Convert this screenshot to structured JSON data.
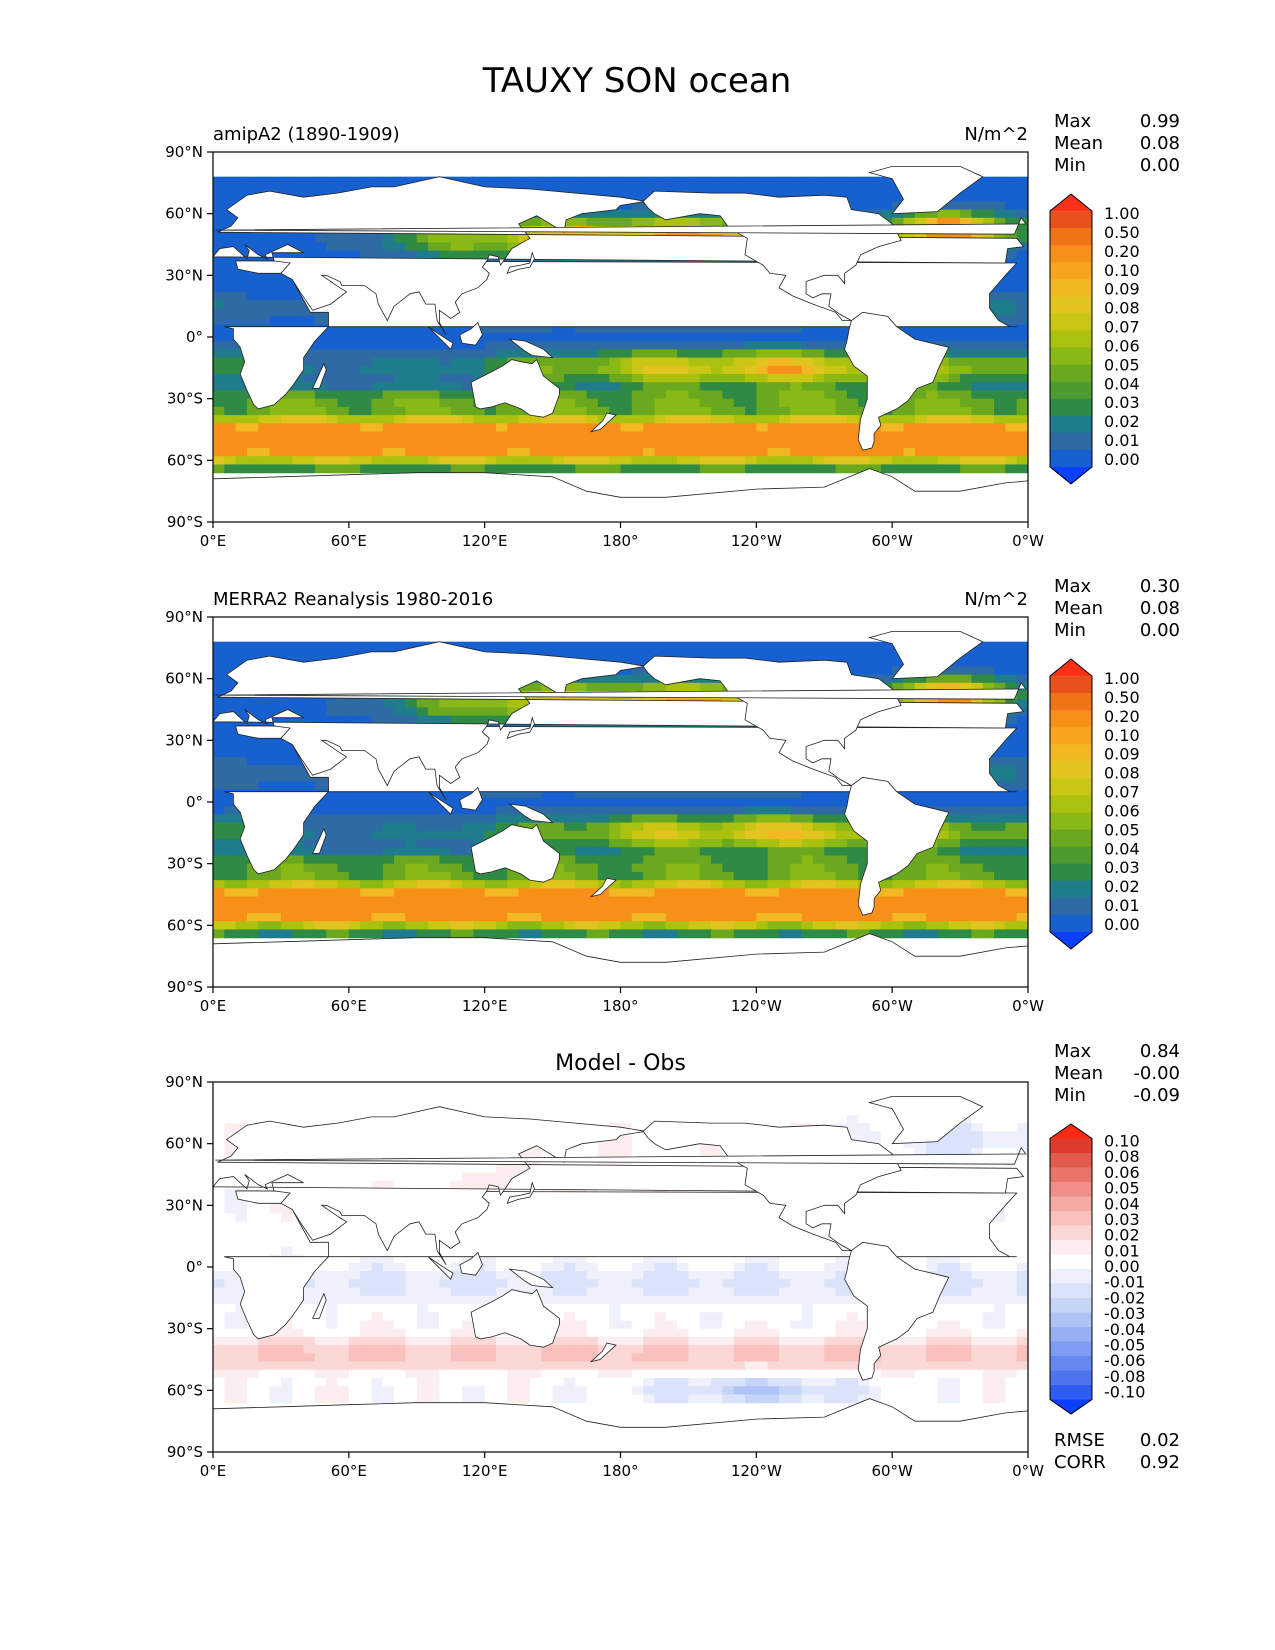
{
  "title": "TAUXY SON ocean",
  "colors": {
    "seq": [
      "#0b3ffe",
      "#1760d0",
      "#2e6aa3",
      "#1f7c8c",
      "#2e8a45",
      "#4d9a30",
      "#6aa91f",
      "#8ab814",
      "#aac20e",
      "#c9c614",
      "#e2c421",
      "#f2b824",
      "#f7a41e",
      "#f79019",
      "#f07417",
      "#e8511b",
      "#fe3018"
    ],
    "div": [
      "#0b3ffe",
      "#2f5cf0",
      "#4d74ec",
      "#6689ef",
      "#7e9df2",
      "#97b0f4",
      "#b0c3f6",
      "#c6d4f8",
      "#dbe3fa",
      "#eef1fc",
      "#ffffff",
      "#fceeee",
      "#fbd7d5",
      "#f8c1bd",
      "#f4a9a3",
      "#ef8f87",
      "#e9746a",
      "#e25a4c",
      "#de3b2c",
      "#fe2b12"
    ]
  },
  "chart_data": [
    {
      "type": "heatmap",
      "left_title": "amipA2 (1890-1909)",
      "units": "N/m^2",
      "stats": [
        {
          "label": "Max",
          "value": "0.99"
        },
        {
          "label": "Mean",
          "value": "0.08"
        },
        {
          "label": "Min",
          "value": "0.00"
        }
      ],
      "xticks": [
        "0°E",
        "60°E",
        "120°E",
        "180°",
        "120°W",
        "60°W",
        "0°W"
      ],
      "yticks": [
        "90°N",
        "60°N",
        "30°N",
        "0°",
        "30°S",
        "60°S",
        "90°S"
      ],
      "colorbar": {
        "scale": "seq",
        "labels": [
          "1.00",
          "0.50",
          "0.20",
          "0.10",
          "0.09",
          "0.08",
          "0.07",
          "0.06",
          "0.05",
          "0.04",
          "0.03",
          "0.02",
          "0.01",
          "0.00"
        ]
      }
    },
    {
      "type": "heatmap",
      "left_title": "MERRA2 Reanalysis 1980-2016",
      "units": "N/m^2",
      "stats": [
        {
          "label": "Max",
          "value": "0.30"
        },
        {
          "label": "Mean",
          "value": "0.08"
        },
        {
          "label": "Min",
          "value": "0.00"
        }
      ],
      "xticks": [
        "0°E",
        "60°E",
        "120°E",
        "180°",
        "120°W",
        "60°W",
        "0°W"
      ],
      "yticks": [
        "90°N",
        "60°N",
        "30°N",
        "0°",
        "30°S",
        "60°S",
        "90°S"
      ],
      "colorbar": {
        "scale": "seq",
        "labels": [
          "1.00",
          "0.50",
          "0.20",
          "0.10",
          "0.09",
          "0.08",
          "0.07",
          "0.06",
          "0.05",
          "0.04",
          "0.03",
          "0.02",
          "0.01",
          "0.00"
        ]
      }
    },
    {
      "type": "heatmap",
      "center_title": "Model - Obs",
      "stats": [
        {
          "label": "Max",
          "value": "0.84"
        },
        {
          "label": "Mean",
          "value": "-0.00"
        },
        {
          "label": "Min",
          "value": "-0.09"
        }
      ],
      "bottom_stats": [
        {
          "label": "RMSE",
          "value": "0.02"
        },
        {
          "label": "CORR",
          "value": "0.92"
        }
      ],
      "xticks": [
        "0°E",
        "60°E",
        "120°E",
        "180°",
        "120°W",
        "60°W",
        "0°W"
      ],
      "yticks": [
        "90°N",
        "60°N",
        "30°N",
        "0°",
        "30°S",
        "60°S",
        "90°S"
      ],
      "colorbar": {
        "scale": "div",
        "labels": [
          "0.10",
          "0.08",
          "0.06",
          "0.05",
          "0.04",
          "0.03",
          "0.02",
          "0.01",
          "0.00",
          "-0.01",
          "-0.02",
          "-0.03",
          "-0.04",
          "-0.05",
          "-0.06",
          "-0.08",
          "-0.10"
        ]
      }
    }
  ]
}
